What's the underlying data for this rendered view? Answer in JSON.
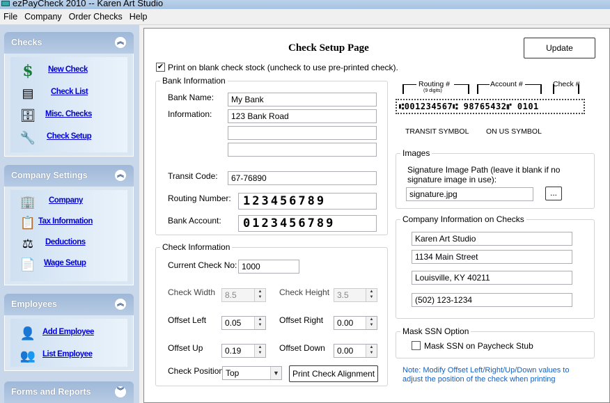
{
  "window": {
    "title": "ezPayCheck 2010 -- Karen Art Studio"
  },
  "menu": [
    "File",
    "Company",
    "Order Checks",
    "Help"
  ],
  "sidebar": {
    "checks": {
      "title": "Checks",
      "items": [
        {
          "label": "New Check",
          "icon": "dollar-icon"
        },
        {
          "label": "Check List",
          "icon": "list-icon"
        },
        {
          "label": "Misc. Checks",
          "icon": "drawer-icon"
        },
        {
          "label": "Check Setup",
          "icon": "wrench-icon"
        }
      ]
    },
    "company": {
      "title": "Company Settings",
      "items": [
        {
          "label": "Company",
          "icon": "building-icon"
        },
        {
          "label": "Tax Information",
          "icon": "form-icon"
        },
        {
          "label": "Deductions",
          "icon": "deductions-icon"
        },
        {
          "label": "Wage Setup",
          "icon": "clipboard-icon"
        }
      ]
    },
    "employees": {
      "title": "Employees",
      "items": [
        {
          "label": "Add Employee",
          "icon": "person-icon"
        },
        {
          "label": "List Employee",
          "icon": "people-icon"
        }
      ]
    },
    "forms": {
      "title": "Forms and Reports"
    }
  },
  "main": {
    "title": "Check Setup Page",
    "update_label": "Update",
    "print_blank": {
      "label": "Print on blank check stock (uncheck to use pre-printed check).",
      "checked": true
    },
    "bank": {
      "title": "Bank Information",
      "name_label": "Bank Name:",
      "name": "My Bank",
      "info_label": "Information:",
      "info": [
        "123 Bank Road",
        "",
        ""
      ],
      "transit_label": "Transit Code:",
      "transit": "67-76890",
      "routing_label": "Routing Number:",
      "routing": "123456789",
      "account_label": "Bank Account:",
      "account": "0123456789"
    },
    "check": {
      "title": "Check Information",
      "current_label": "Current Check No:",
      "current": "1000",
      "width_label": "Check Width",
      "width": "8.5",
      "height_label": "Check Height",
      "height": "3.5",
      "left_label": "Offset Left",
      "left": "0.05",
      "right_label": "Offset Right",
      "right": "0.00",
      "up_label": "Offset Up",
      "up": "0.19",
      "down_label": "Offset Down",
      "down": "0.00",
      "position_label": "Check Position",
      "position": "Top",
      "print_align_label": "Print Check Alignment"
    },
    "micr": {
      "routing": "Routing #",
      "nine": "(9 digits)",
      "account": "Account #",
      "check": "Check #",
      "line": "⑆001234567⑆ 98765432⑈ 0101",
      "transit": "TRANSIT SYMBOL",
      "onus": "ON US SYMBOL"
    },
    "images": {
      "title": "Images",
      "label": "Signature Image Path (leave it blank if no signature image in use):",
      "path": "signature.jpg",
      "browse": "..."
    },
    "company": {
      "title": "Company Information on Checks",
      "lines": [
        "Karen Art Studio",
        "1134 Main Street",
        "Louisville, KY 40211",
        "(502) 123-1234"
      ]
    },
    "mask": {
      "title": "Mask SSN Option",
      "label": "Mask SSN on Paycheck Stub",
      "checked": false
    },
    "note": "Note: Modify Offset Left/Right/Up/Down values to adjust the position of  the check when printing"
  },
  "colors": {
    "link": "#0000dd",
    "note": "#1560c0"
  }
}
